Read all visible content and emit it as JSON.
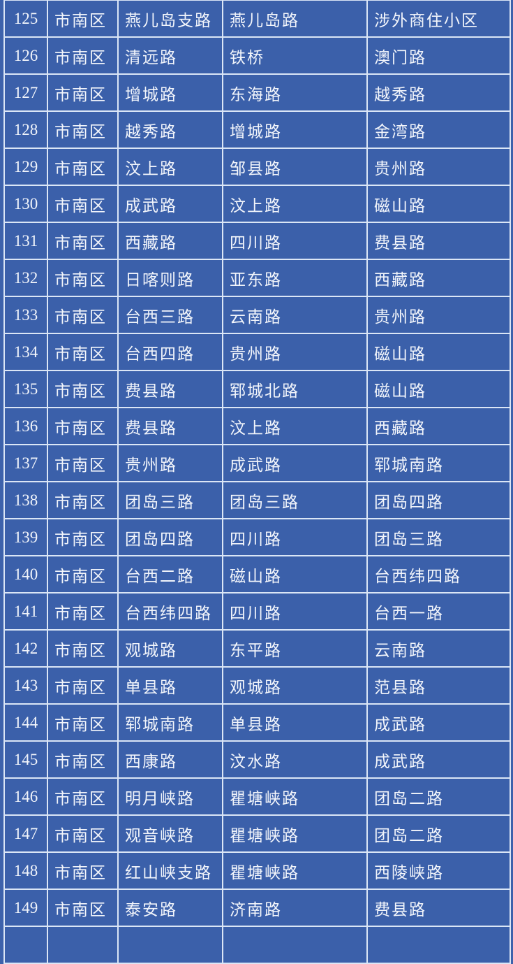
{
  "colors": {
    "background": "#3b60aa",
    "grid": "#dbe6f6",
    "text": "#f2f5fb"
  },
  "rows": [
    [
      "125",
      "市南区",
      "燕儿岛支路",
      "燕儿岛路",
      "涉外商住小区"
    ],
    [
      "126",
      "市南区",
      "清远路",
      "铁桥",
      "澳门路"
    ],
    [
      "127",
      "市南区",
      "增城路",
      "东海路",
      "越秀路"
    ],
    [
      "128",
      "市南区",
      "越秀路",
      "增城路",
      "金湾路"
    ],
    [
      "129",
      "市南区",
      "汶上路",
      "邹县路",
      "贵州路"
    ],
    [
      "130",
      "市南区",
      "成武路",
      "汶上路",
      "磁山路"
    ],
    [
      "131",
      "市南区",
      "西藏路",
      "四川路",
      "费县路"
    ],
    [
      "132",
      "市南区",
      "日喀则路",
      "亚东路",
      "西藏路"
    ],
    [
      "133",
      "市南区",
      "台西三路",
      "云南路",
      "贵州路"
    ],
    [
      "134",
      "市南区",
      "台西四路",
      "贵州路",
      "磁山路"
    ],
    [
      "135",
      "市南区",
      "费县路",
      "郓城北路",
      "磁山路"
    ],
    [
      "136",
      "市南区",
      "费县路",
      "汶上路",
      "西藏路"
    ],
    [
      "137",
      "市南区",
      "贵州路",
      "成武路",
      "郓城南路"
    ],
    [
      "138",
      "市南区",
      "团岛三路",
      "团岛三路",
      "团岛四路"
    ],
    [
      "139",
      "市南区",
      "团岛四路",
      "四川路",
      "团岛三路"
    ],
    [
      "140",
      "市南区",
      "台西二路",
      "磁山路",
      "台西纬四路"
    ],
    [
      "141",
      "市南区",
      "台西纬四路",
      "四川路",
      "台西一路"
    ],
    [
      "142",
      "市南区",
      "观城路",
      "东平路",
      "云南路"
    ],
    [
      "143",
      "市南区",
      "单县路",
      "观城路",
      "范县路"
    ],
    [
      "144",
      "市南区",
      "郓城南路",
      "单县路",
      "成武路"
    ],
    [
      "145",
      "市南区",
      "西康路",
      "汶水路",
      "成武路"
    ],
    [
      "146",
      "市南区",
      "明月峡路",
      "瞿塘峡路",
      "团岛二路"
    ],
    [
      "147",
      "市南区",
      "观音峡路",
      "瞿塘峡路",
      "团岛二路"
    ],
    [
      "148",
      "市南区",
      "红山峡支路",
      "瞿塘峡路",
      "西陵峡路"
    ],
    [
      "149",
      "市南区",
      "泰安路",
      "济南路",
      "费县路"
    ]
  ]
}
